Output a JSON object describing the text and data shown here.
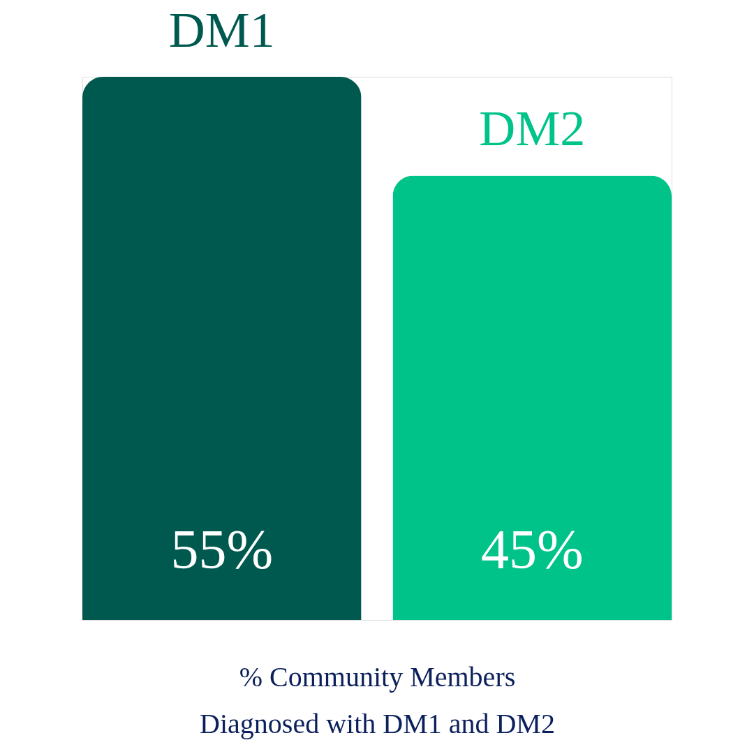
{
  "chart_data": {
    "type": "bar",
    "categories": [
      "DM1",
      "DM2"
    ],
    "values": [
      55,
      45
    ],
    "colors": [
      "#00594f",
      "#00c389"
    ],
    "value_labels": [
      "55%",
      "45%"
    ],
    "xlabel": "% Community Members\nDiagnosed with DM1 and DM2"
  }
}
